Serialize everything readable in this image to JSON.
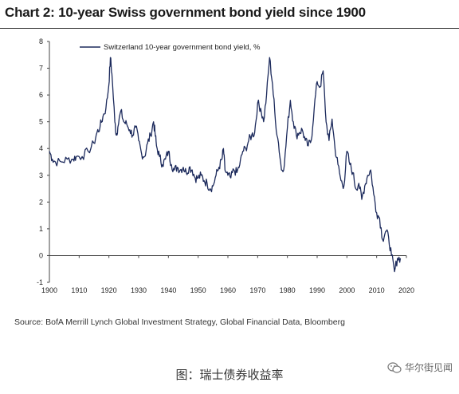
{
  "chart_data": {
    "type": "line",
    "title": "Chart 2: 10-year Swiss government bond yield since 1900",
    "xlabel": "",
    "ylabel": "",
    "xlim": [
      1900,
      2020
    ],
    "ylim": [
      -1,
      8
    ],
    "x_ticks": [
      1900,
      1910,
      1920,
      1930,
      1940,
      1950,
      1960,
      1970,
      1980,
      1990,
      2000,
      2010,
      2020
    ],
    "y_ticks": [
      -1,
      0,
      1,
      2,
      3,
      4,
      5,
      6,
      7,
      8
    ],
    "legend_position": "top-center",
    "grid": false,
    "series": [
      {
        "name": "Switzerland 10-year government bond yield, %",
        "color": "#1c2a5c",
        "points": [
          [
            1900,
            3.9
          ],
          [
            1901,
            3.6
          ],
          [
            1902,
            3.5
          ],
          [
            1904,
            3.5
          ],
          [
            1906,
            3.6
          ],
          [
            1908,
            3.6
          ],
          [
            1909,
            3.7
          ],
          [
            1911,
            3.7
          ],
          [
            1913,
            3.9
          ],
          [
            1915,
            4.2
          ],
          [
            1916,
            4.6
          ],
          [
            1917,
            4.8
          ],
          [
            1918,
            5.2
          ],
          [
            1919,
            5.5
          ],
          [
            1920,
            6.4
          ],
          [
            1920.5,
            7.4
          ],
          [
            1921,
            6.8
          ],
          [
            1922,
            5.0
          ],
          [
            1922.5,
            4.5
          ],
          [
            1923,
            4.8
          ],
          [
            1924,
            5.4
          ],
          [
            1925,
            5.0
          ],
          [
            1926,
            4.9
          ],
          [
            1927,
            4.7
          ],
          [
            1928,
            4.5
          ],
          [
            1929,
            4.8
          ],
          [
            1930,
            4.3
          ],
          [
            1931,
            3.8
          ],
          [
            1932,
            3.7
          ],
          [
            1933,
            4.2
          ],
          [
            1934,
            4.5
          ],
          [
            1935,
            5.0
          ],
          [
            1935.5,
            4.6
          ],
          [
            1936,
            4.1
          ],
          [
            1937,
            3.7
          ],
          [
            1938,
            3.4
          ],
          [
            1939,
            3.6
          ],
          [
            1940,
            3.9
          ],
          [
            1941,
            3.4
          ],
          [
            1942,
            3.2
          ],
          [
            1943,
            3.3
          ],
          [
            1944,
            3.2
          ],
          [
            1945,
            3.3
          ],
          [
            1946,
            3.1
          ],
          [
            1947,
            3.3
          ],
          [
            1948,
            3.2
          ],
          [
            1949,
            2.9
          ],
          [
            1950,
            2.9
          ],
          [
            1951,
            3.0
          ],
          [
            1952,
            2.8
          ],
          [
            1953,
            2.7
          ],
          [
            1954,
            2.5
          ],
          [
            1955,
            2.6
          ],
          [
            1956,
            3.0
          ],
          [
            1957,
            3.3
          ],
          [
            1958,
            3.6
          ],
          [
            1958.5,
            4.0
          ],
          [
            1959,
            3.2
          ],
          [
            1960,
            3.0
          ],
          [
            1961,
            2.9
          ],
          [
            1962,
            3.2
          ],
          [
            1963,
            3.1
          ],
          [
            1964,
            3.4
          ],
          [
            1965,
            3.9
          ],
          [
            1966,
            4.0
          ],
          [
            1967,
            4.3
          ],
          [
            1968,
            4.5
          ],
          [
            1969,
            4.6
          ],
          [
            1970,
            5.7
          ],
          [
            1971,
            5.5
          ],
          [
            1972,
            5.0
          ],
          [
            1973,
            6.0
          ],
          [
            1974,
            7.4
          ],
          [
            1975,
            6.4
          ],
          [
            1976,
            5.0
          ],
          [
            1977,
            4.2
          ],
          [
            1978,
            3.2
          ],
          [
            1979,
            3.4
          ],
          [
            1980,
            4.8
          ],
          [
            1981,
            5.8
          ],
          [
            1982,
            5.0
          ],
          [
            1983,
            4.5
          ],
          [
            1984,
            4.6
          ],
          [
            1985,
            4.7
          ],
          [
            1986,
            4.3
          ],
          [
            1987,
            4.1
          ],
          [
            1988,
            4.3
          ],
          [
            1989,
            5.5
          ],
          [
            1990,
            6.5
          ],
          [
            1991,
            6.3
          ],
          [
            1992,
            6.9
          ],
          [
            1993,
            5.0
          ],
          [
            1994,
            4.3
          ],
          [
            1995,
            5.1
          ],
          [
            1996,
            4.0
          ],
          [
            1997,
            3.4
          ],
          [
            1998,
            2.8
          ],
          [
            1999,
            2.6
          ],
          [
            2000,
            3.9
          ],
          [
            2001,
            3.4
          ],
          [
            2002,
            3.1
          ],
          [
            2003,
            2.5
          ],
          [
            2004,
            2.7
          ],
          [
            2005,
            2.1
          ],
          [
            2006,
            2.6
          ],
          [
            2007,
            3.0
          ],
          [
            2008,
            3.2
          ],
          [
            2009,
            2.3
          ],
          [
            2010,
            1.6
          ],
          [
            2011,
            1.4
          ],
          [
            2012,
            0.6
          ],
          [
            2013,
            0.9
          ],
          [
            2014,
            0.7
          ],
          [
            2015,
            0.0
          ],
          [
            2016,
            -0.6
          ],
          [
            2017,
            -0.1
          ],
          [
            2018,
            -0.1
          ]
        ]
      }
    ]
  },
  "source_text": "Source: BofA Merrill Lynch Global Investment Strategy, Global Financial Data, Bloomberg",
  "caption": "图：瑞士债券收益率",
  "watermark": {
    "text": "华尔街见闻",
    "icon": "wechat-icon"
  }
}
